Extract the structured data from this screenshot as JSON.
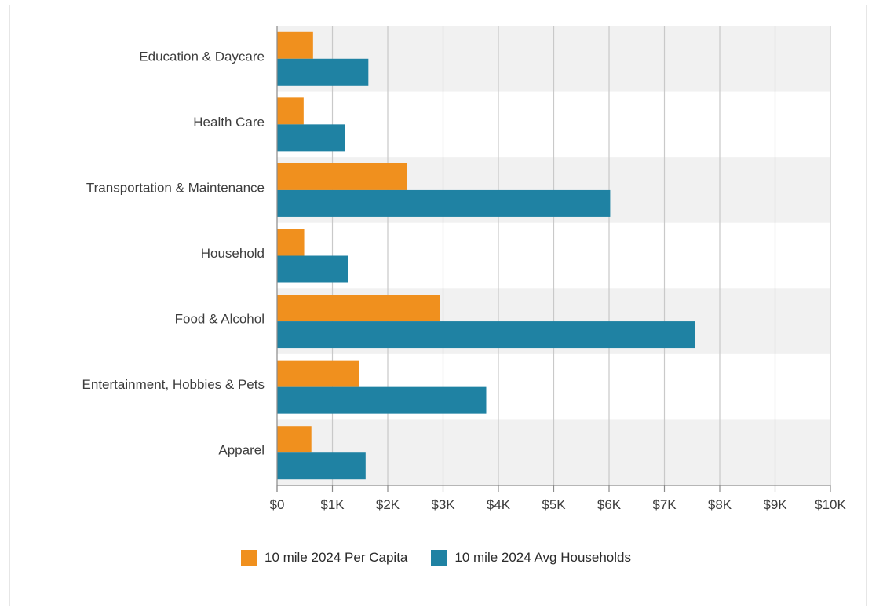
{
  "chart_data": {
    "type": "bar",
    "orientation": "horizontal",
    "categories": [
      "Education & Daycare",
      "Health Care",
      "Transportation & Maintenance",
      "Household",
      "Food & Alcohol",
      "Entertainment, Hobbies & Pets",
      "Apparel"
    ],
    "series": [
      {
        "name": "10 mile 2024 Per Capita",
        "color": "#f0901e",
        "values": [
          650,
          480,
          2350,
          490,
          2950,
          1480,
          620
        ]
      },
      {
        "name": "10 mile 2024 Avg Households",
        "color": "#1f82a3",
        "values": [
          1650,
          1220,
          6020,
          1280,
          7550,
          3780,
          1600
        ]
      }
    ],
    "xlim": [
      0,
      10000
    ],
    "x_ticks": [
      0,
      1000,
      2000,
      3000,
      4000,
      5000,
      6000,
      7000,
      8000,
      9000,
      10000
    ],
    "x_tick_labels": [
      "$0",
      "$1K",
      "$2K",
      "$3K",
      "$4K",
      "$5K",
      "$6K",
      "$7K",
      "$8K",
      "$9K",
      "$10K"
    ],
    "grid": true,
    "legend_position": "bottom",
    "row_band_color": "#f1f1f1"
  }
}
